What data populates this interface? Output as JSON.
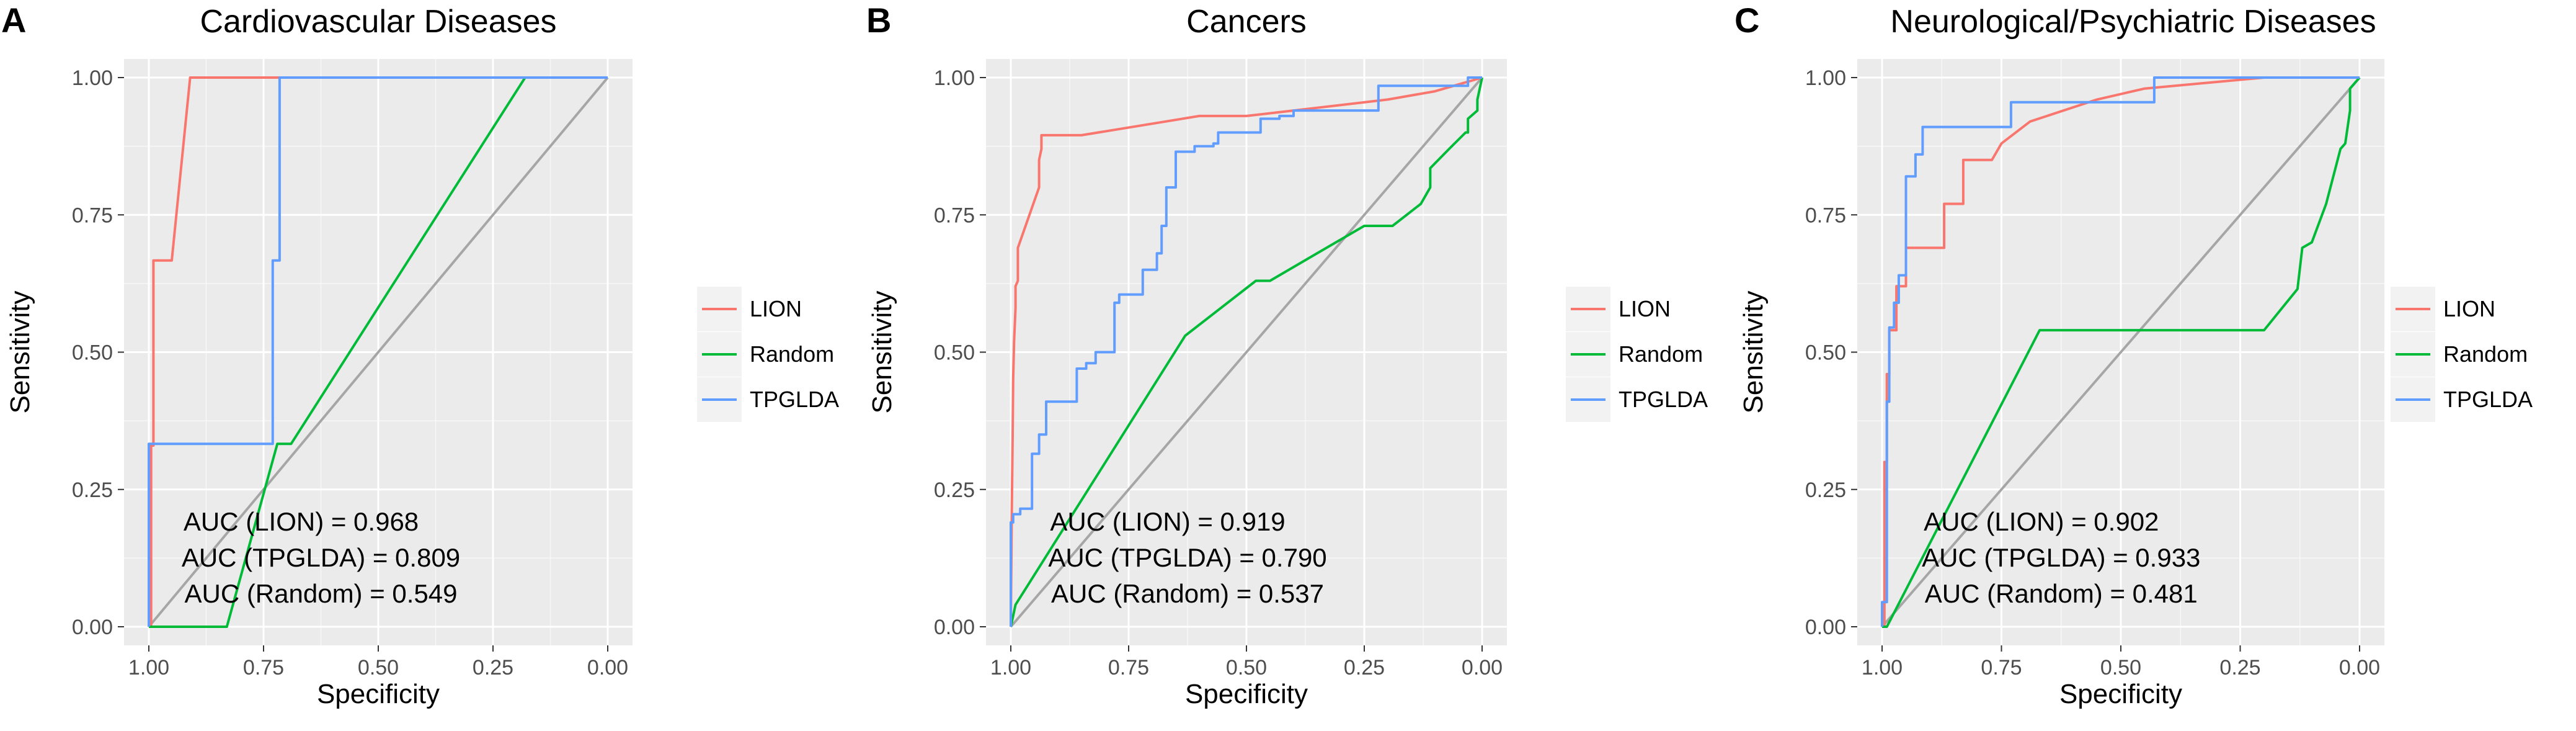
{
  "figure": {
    "colors": {
      "LION": "#F8766D",
      "Random": "#00BA38",
      "TPGLDA": "#619CFF",
      "diagonal": "#A6A6A6",
      "panel_bg": "#EBEBEB",
      "grid": "#FFFFFF"
    }
  },
  "chart_data": [
    {
      "type": "line",
      "panel_letter": "A",
      "title": "Cardiovascular Diseases",
      "xlabel": "Specificity",
      "ylabel": "Sensitivity",
      "xlim": [
        1.0,
        0.0
      ],
      "ylim": [
        0.0,
        1.0
      ],
      "x_ticks": [
        "1.00",
        "0.75",
        "0.50",
        "0.25",
        "0.00"
      ],
      "y_ticks": [
        "0.00",
        "0.25",
        "0.50",
        "0.75",
        "1.00"
      ],
      "legend": [
        "LION",
        "Random",
        "TPGLDA"
      ],
      "legend_position": "right",
      "annotations": [
        "AUC (LION) = 0.968",
        "AUC (TPGLDA) = 0.809",
        "AUC (Random) = 0.549"
      ],
      "series": [
        {
          "name": "LION",
          "x": [
            1.0,
            0.995,
            0.995,
            0.99,
            0.99,
            0.95,
            0.95,
            0.91,
            0.0
          ],
          "y": [
            0.0,
            0.0,
            0.33,
            0.33,
            0.667,
            0.667,
            0.667,
            1.0,
            1.0
          ]
        },
        {
          "name": "Random",
          "x": [
            1.0,
            0.83,
            0.72,
            0.69,
            0.18
          ],
          "y": [
            0.0,
            0.0,
            0.333,
            0.333,
            1.0
          ]
        },
        {
          "name": "TPGLDA",
          "x": [
            1.0,
            1.0,
            0.73,
            0.73,
            0.715,
            0.715,
            0.0
          ],
          "y": [
            0.0,
            0.333,
            0.333,
            0.667,
            0.667,
            1.0,
            1.0
          ]
        }
      ],
      "diagonal": {
        "x": [
          1.0,
          0.0
        ],
        "y": [
          0.0,
          1.0
        ]
      }
    },
    {
      "type": "line",
      "panel_letter": "B",
      "title": "Cancers",
      "xlabel": "Specificity",
      "ylabel": "Sensitivity",
      "xlim": [
        1.0,
        0.0
      ],
      "ylim": [
        0.0,
        1.0
      ],
      "x_ticks": [
        "1.00",
        "0.75",
        "0.50",
        "0.25",
        "0.00"
      ],
      "y_ticks": [
        "0.00",
        "0.25",
        "0.50",
        "0.75",
        "1.00"
      ],
      "legend": [
        "LION",
        "Random",
        "TPGLDA"
      ],
      "legend_position": "right",
      "annotations": [
        "AUC (LION) = 0.919",
        "AUC (TPGLDA) = 0.790",
        "AUC (Random) = 0.537"
      ],
      "series": [
        {
          "name": "LION",
          "x": [
            1.0,
            0.998,
            0.996,
            0.995,
            0.993,
            0.99,
            0.99,
            0.985,
            0.985,
            0.94,
            0.94,
            0.935,
            0.935,
            0.85,
            0.6,
            0.5,
            0.4,
            0.2,
            0.1,
            0.02,
            0.0
          ],
          "y": [
            0.0,
            0.2,
            0.35,
            0.45,
            0.52,
            0.58,
            0.62,
            0.63,
            0.69,
            0.8,
            0.85,
            0.87,
            0.895,
            0.895,
            0.93,
            0.93,
            0.94,
            0.96,
            0.975,
            0.995,
            1.0
          ]
        },
        {
          "name": "Random",
          "x": [
            1.0,
            0.99,
            0.63,
            0.48,
            0.45,
            0.37,
            0.25,
            0.19,
            0.13,
            0.11,
            0.11,
            0.07,
            0.035,
            0.03,
            0.03,
            0.01,
            0.01,
            0.0
          ],
          "y": [
            0.0,
            0.04,
            0.53,
            0.63,
            0.63,
            0.67,
            0.73,
            0.73,
            0.77,
            0.8,
            0.835,
            0.87,
            0.9,
            0.9,
            0.925,
            0.94,
            0.96,
            1.0
          ]
        },
        {
          "name": "TPGLDA",
          "x": [
            1.0,
            1.0,
            0.995,
            0.995,
            0.98,
            0.98,
            0.955,
            0.955,
            0.94,
            0.94,
            0.925,
            0.925,
            0.9,
            0.9,
            0.86,
            0.86,
            0.84,
            0.84,
            0.82,
            0.82,
            0.8,
            0.8,
            0.78,
            0.78,
            0.77,
            0.77,
            0.72,
            0.72,
            0.69,
            0.69,
            0.68,
            0.68,
            0.67,
            0.67,
            0.65,
            0.65,
            0.61,
            0.61,
            0.57,
            0.57,
            0.56,
            0.56,
            0.47,
            0.47,
            0.43,
            0.43,
            0.4,
            0.4,
            0.22,
            0.22,
            0.03,
            0.03,
            0.0
          ],
          "y": [
            0.0,
            0.19,
            0.19,
            0.205,
            0.205,
            0.215,
            0.215,
            0.315,
            0.315,
            0.35,
            0.35,
            0.41,
            0.41,
            0.41,
            0.41,
            0.47,
            0.47,
            0.48,
            0.48,
            0.5,
            0.5,
            0.5,
            0.5,
            0.59,
            0.59,
            0.605,
            0.605,
            0.65,
            0.65,
            0.68,
            0.68,
            0.73,
            0.73,
            0.8,
            0.8,
            0.865,
            0.865,
            0.875,
            0.875,
            0.88,
            0.88,
            0.9,
            0.9,
            0.925,
            0.925,
            0.93,
            0.93,
            0.94,
            0.94,
            0.985,
            0.985,
            1.0,
            1.0
          ]
        }
      ],
      "diagonal": {
        "x": [
          1.0,
          0.0
        ],
        "y": [
          0.0,
          1.0
        ]
      }
    },
    {
      "type": "line",
      "panel_letter": "C",
      "title": "Neurological/Psychiatric Diseases",
      "xlabel": "Specificity",
      "ylabel": "Sensitivity",
      "xlim": [
        1.0,
        0.0
      ],
      "ylim": [
        0.0,
        1.0
      ],
      "x_ticks": [
        "1.00",
        "0.75",
        "0.50",
        "0.25",
        "0.00"
      ],
      "y_ticks": [
        "0.00",
        "0.25",
        "0.50",
        "0.75",
        "1.00"
      ],
      "legend": [
        "LION",
        "Random",
        "TPGLDA"
      ],
      "legend_position": "right",
      "annotations": [
        "AUC (LION) = 0.902",
        "AUC (TPGLDA) = 0.933",
        "AUC (Random) = 0.481"
      ],
      "series": [
        {
          "name": "LION",
          "x": [
            1.0,
            0.995,
            0.995,
            0.99,
            0.99,
            0.985,
            0.985,
            0.97,
            0.97,
            0.95,
            0.95,
            0.87,
            0.87,
            0.83,
            0.83,
            0.77,
            0.77,
            0.75,
            0.69,
            0.55,
            0.45,
            0.2,
            0.0
          ],
          "y": [
            0.0,
            0.0,
            0.3,
            0.3,
            0.46,
            0.46,
            0.54,
            0.54,
            0.62,
            0.62,
            0.69,
            0.69,
            0.77,
            0.77,
            0.85,
            0.85,
            0.85,
            0.88,
            0.92,
            0.96,
            0.98,
            1.0,
            1.0
          ]
        },
        {
          "name": "Random",
          "x": [
            1.0,
            0.99,
            0.67,
            0.2,
            0.13,
            0.12,
            0.1,
            0.07,
            0.07,
            0.04,
            0.03,
            0.02,
            0.02,
            0.0
          ],
          "y": [
            0.0,
            0.0,
            0.54,
            0.54,
            0.615,
            0.69,
            0.7,
            0.77,
            0.77,
            0.87,
            0.88,
            0.94,
            0.98,
            1.0
          ]
        },
        {
          "name": "TPGLDA",
          "x": [
            1.0,
            1.0,
            0.99,
            0.99,
            0.985,
            0.985,
            0.975,
            0.975,
            0.965,
            0.965,
            0.95,
            0.95,
            0.93,
            0.93,
            0.915,
            0.915,
            0.9,
            0.9,
            0.73,
            0.73,
            0.43,
            0.43,
            0.0
          ],
          "y": [
            0.0,
            0.045,
            0.045,
            0.41,
            0.41,
            0.545,
            0.545,
            0.59,
            0.59,
            0.64,
            0.64,
            0.82,
            0.82,
            0.86,
            0.86,
            0.91,
            0.91,
            0.91,
            0.91,
            0.955,
            0.955,
            1.0,
            1.0
          ]
        }
      ],
      "diagonal": {
        "x": [
          1.0,
          0.0
        ],
        "y": [
          0.0,
          1.0
        ]
      }
    }
  ]
}
